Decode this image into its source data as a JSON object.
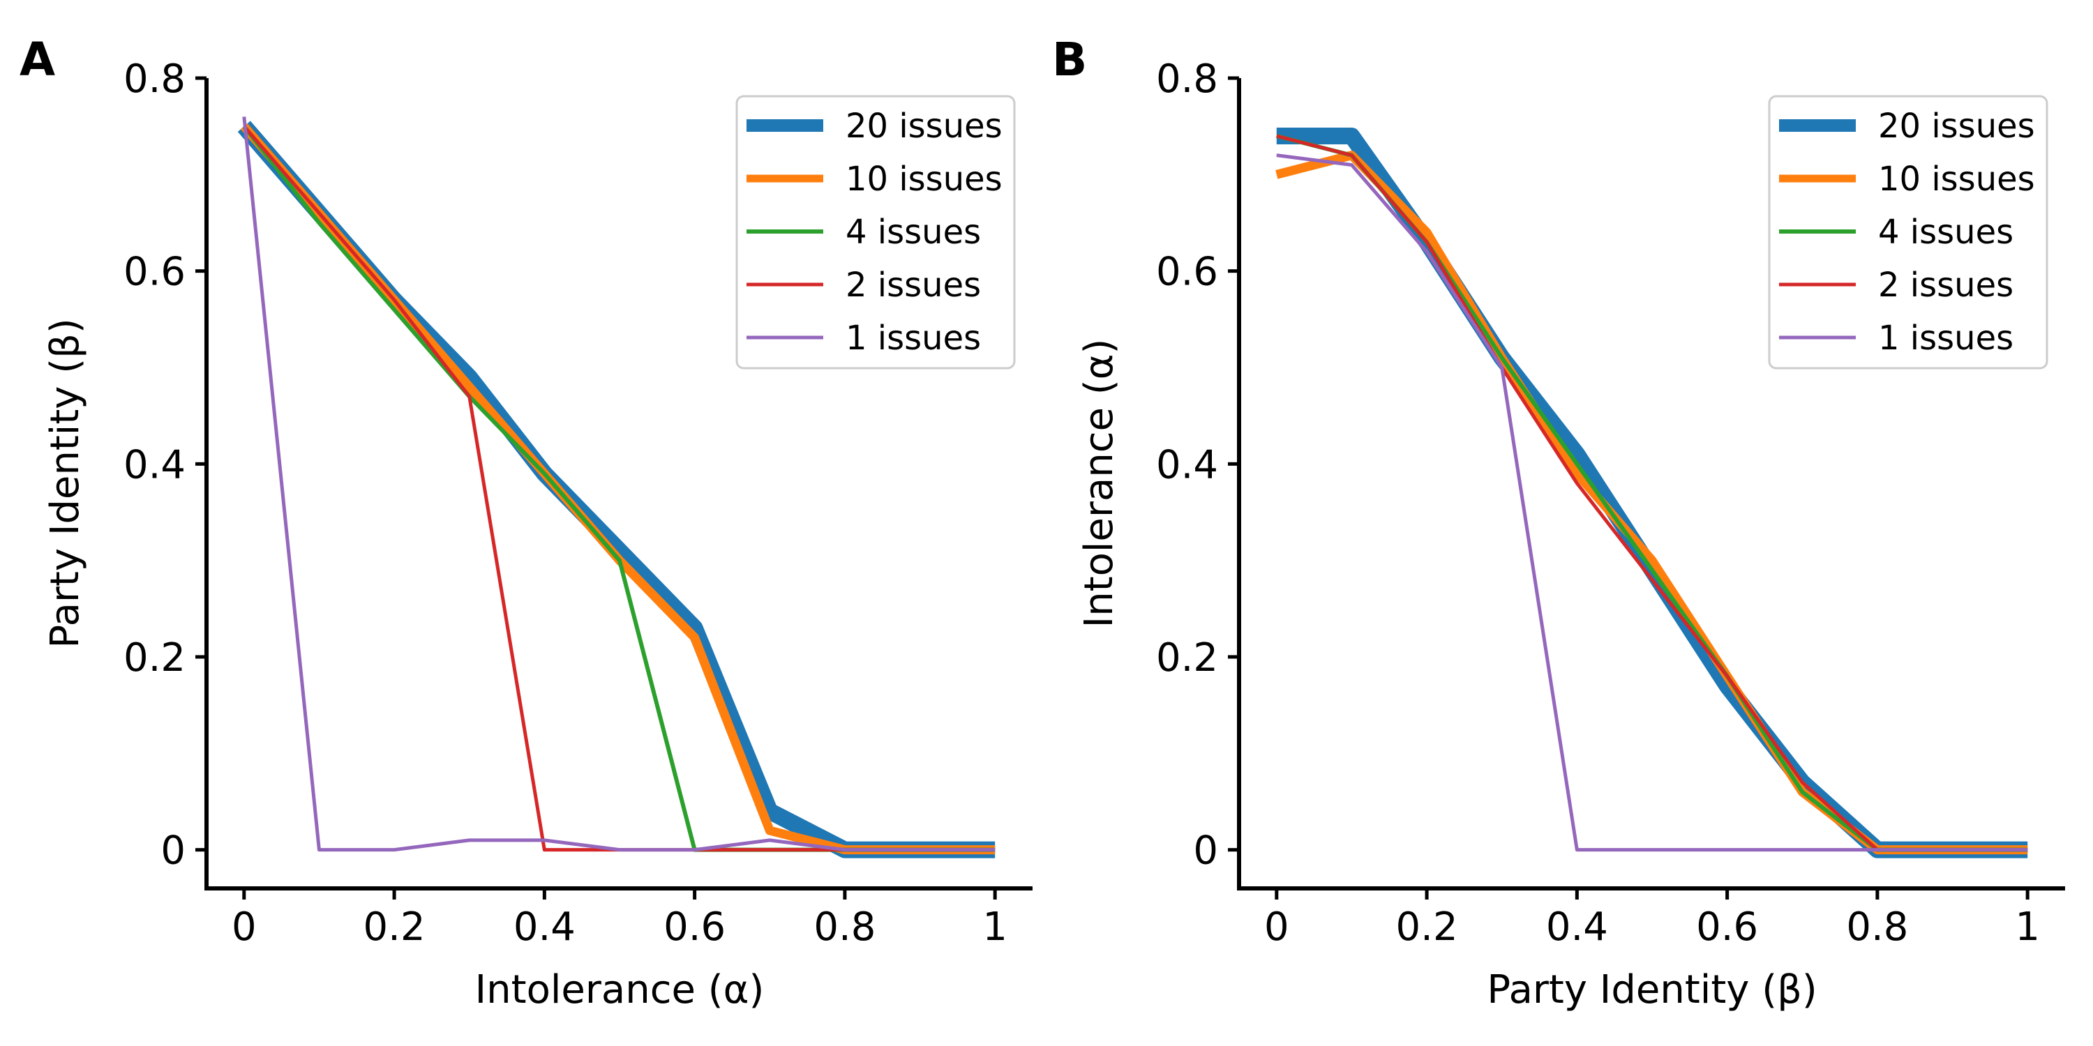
{
  "chart_data": [
    {
      "panel": "A",
      "type": "line",
      "xlabel": "Intolerance (α)",
      "ylabel": "Party Identity (β)",
      "xlim": [
        -0.05,
        1.05
      ],
      "ylim": [
        -0.04,
        0.8
      ],
      "xticks": [
        0,
        0.2,
        0.4,
        0.6,
        0.8,
        1
      ],
      "xtick_labels": [
        "0",
        "0.2",
        "0.4",
        "0.6",
        "0.8",
        "1"
      ],
      "yticks": [
        0,
        0.2,
        0.4,
        0.6,
        0.8
      ],
      "ytick_labels": [
        "0",
        "0.2",
        "0.4",
        "0.6",
        "0.8"
      ],
      "legend_position": "top-right",
      "x": [
        0,
        0.1,
        0.2,
        0.3,
        0.4,
        0.5,
        0.6,
        0.7,
        0.8,
        0.9,
        1.0
      ],
      "series": [
        {
          "name": "20 issues",
          "color": "#1f77b4",
          "values": [
            0.75,
            0.66,
            0.57,
            0.49,
            0.39,
            0.31,
            0.23,
            0.04,
            0.0,
            0.0,
            0.0
          ]
        },
        {
          "name": "10 issues",
          "color": "#ff7f0e",
          "values": [
            0.75,
            0.66,
            0.57,
            0.48,
            0.39,
            0.3,
            0.22,
            0.02,
            0.0,
            0.0,
            0.0
          ]
        },
        {
          "name": "4 issues",
          "color": "#2ca02c",
          "values": [
            0.75,
            0.65,
            0.56,
            0.47,
            0.39,
            0.3,
            0.0,
            0.0,
            0.0,
            0.0,
            0.0
          ]
        },
        {
          "name": "2 issues",
          "color": "#d62728",
          "values": [
            0.75,
            0.66,
            0.57,
            0.47,
            0.0,
            0.0,
            0.0,
            0.0,
            0.0,
            0.0,
            0.0
          ]
        },
        {
          "name": "1 issues",
          "color": "#9467bd",
          "values": [
            0.76,
            0.0,
            0.0,
            0.01,
            0.01,
            0.0,
            0.0,
            0.01,
            0.0,
            0.0,
            0.0
          ]
        }
      ]
    },
    {
      "panel": "B",
      "type": "line",
      "xlabel": "Party Identity (β)",
      "ylabel": "Intolerance (α)",
      "xlim": [
        -0.05,
        1.05
      ],
      "ylim": [
        -0.04,
        0.8
      ],
      "xticks": [
        0,
        0.2,
        0.4,
        0.6,
        0.8,
        1
      ],
      "xtick_labels": [
        "0",
        "0.2",
        "0.4",
        "0.6",
        "0.8",
        "1"
      ],
      "yticks": [
        0,
        0.2,
        0.4,
        0.6,
        0.8
      ],
      "ytick_labels": [
        "0",
        "0.2",
        "0.4",
        "0.6",
        "0.8"
      ],
      "legend_position": "top-right",
      "x": [
        0,
        0.1,
        0.2,
        0.3,
        0.4,
        0.5,
        0.6,
        0.7,
        0.8,
        0.9,
        1.0
      ],
      "series": [
        {
          "name": "20 issues",
          "color": "#1f77b4",
          "values": [
            0.74,
            0.74,
            0.63,
            0.51,
            0.41,
            0.29,
            0.17,
            0.07,
            0.0,
            0.0,
            0.0
          ]
        },
        {
          "name": "10 issues",
          "color": "#ff7f0e",
          "values": [
            0.7,
            0.72,
            0.64,
            0.51,
            0.39,
            0.3,
            0.18,
            0.06,
            0.0,
            0.0,
            0.0
          ]
        },
        {
          "name": "4 issues",
          "color": "#2ca02c",
          "values": [
            0.74,
            0.72,
            0.63,
            0.51,
            0.4,
            0.29,
            0.18,
            0.06,
            0.0,
            0.0,
            0.0
          ]
        },
        {
          "name": "2 issues",
          "color": "#d62728",
          "values": [
            0.74,
            0.72,
            0.63,
            0.5,
            0.38,
            0.28,
            0.18,
            0.07,
            0.0,
            0.0,
            0.0
          ]
        },
        {
          "name": "1 issues",
          "color": "#9467bd",
          "values": [
            0.72,
            0.71,
            0.62,
            0.5,
            0.0,
            0.0,
            0.0,
            0.0,
            0.0,
            0.0,
            0.0
          ]
        }
      ]
    }
  ]
}
